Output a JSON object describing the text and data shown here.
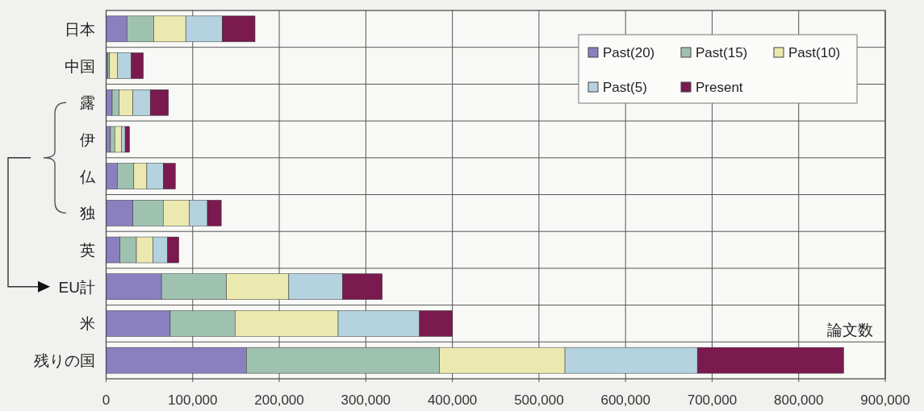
{
  "chart_data": {
    "type": "bar",
    "orientation": "horizontal",
    "stacked": true,
    "categories": [
      "日本",
      "中国",
      "露",
      "伊",
      "仏",
      "独",
      "英",
      "EU計",
      "米",
      "残りの国"
    ],
    "xlabel": "論文数",
    "xlim": [
      0,
      900000
    ],
    "xticks": [
      {
        "value": 0,
        "label": "0"
      },
      {
        "value": 100000,
        "label": "100,000"
      },
      {
        "value": 200000,
        "label": "200,000"
      },
      {
        "value": 300000,
        "label": "300,000"
      },
      {
        "value": 400000,
        "label": "400,000"
      },
      {
        "value": 500000,
        "label": "500,000"
      },
      {
        "value": 600000,
        "label": "600,000"
      },
      {
        "value": 700000,
        "label": "700,000"
      },
      {
        "value": 800000,
        "label": "800,000"
      },
      {
        "value": 900000,
        "label": "900,000"
      }
    ],
    "grid": true,
    "legend": "top right",
    "series": [
      {
        "name": "Past(20)",
        "color": "#8a80c0",
        "values": [
          24000,
          2000,
          7000,
          5000,
          13000,
          31000,
          16000,
          64000,
          74000,
          162000
        ]
      },
      {
        "name": "Past(15)",
        "color": "#9fc2b0",
        "values": [
          31000,
          2000,
          8000,
          5000,
          19000,
          35000,
          19000,
          75000,
          75000,
          223000
        ]
      },
      {
        "name": "Past(10)",
        "color": "#ece9b0",
        "values": [
          37000,
          9000,
          16000,
          8000,
          15000,
          30000,
          19000,
          72000,
          119000,
          145000
        ]
      },
      {
        "name": "Past(5)",
        "color": "#b4d2e0",
        "values": [
          42000,
          16000,
          20000,
          4000,
          19000,
          21000,
          17000,
          62000,
          94000,
          153000
        ]
      },
      {
        "name": "Present",
        "color": "#7a1a4f",
        "values": [
          38000,
          14000,
          21000,
          5000,
          14000,
          16000,
          13000,
          46000,
          38000,
          169000
        ]
      }
    ]
  }
}
